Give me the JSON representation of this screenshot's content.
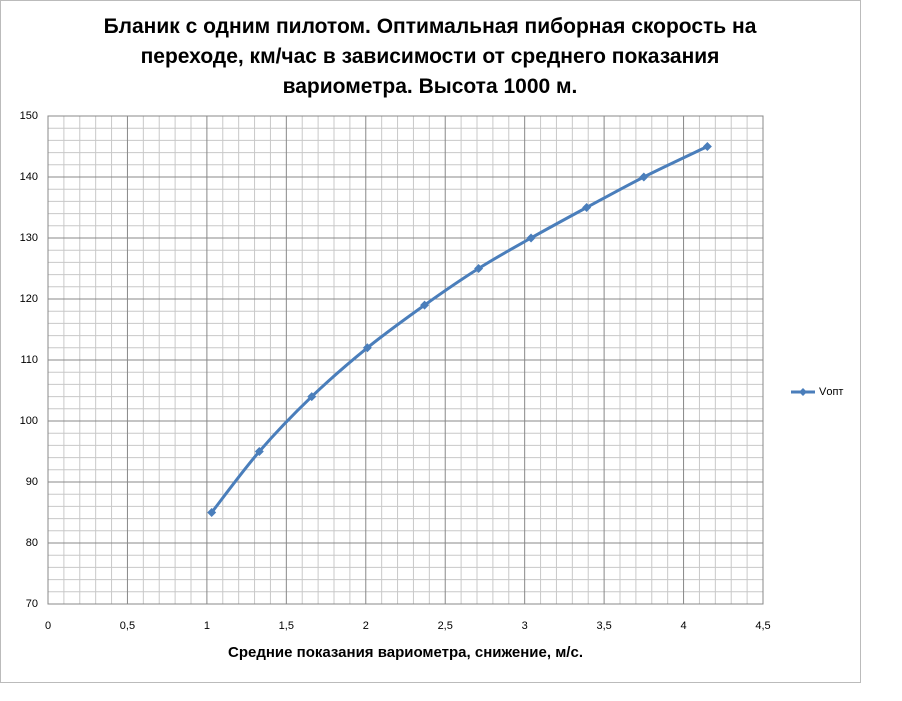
{
  "chart_data": {
    "type": "line",
    "title": "Бланик с одним пилотом. Оптимальная пиборная скорость на переходе, км/час в зависимости от среднего показания вариометра. Высота 1000 м.",
    "x_label": "Средние показания вариометра, снижение, м/с.",
    "x": [
      1.03,
      1.33,
      1.66,
      2.01,
      2.37,
      2.71,
      3.04,
      3.39,
      3.75,
      4.15
    ],
    "series": [
      {
        "name": "Vопт",
        "color": "#4a7ebb",
        "values": [
          85,
          95,
          104,
          112,
          119,
          125,
          130,
          135,
          140,
          145
        ]
      }
    ],
    "xlim": [
      0,
      4.5
    ],
    "xticks": [
      0,
      {
        "value": 0.5,
        "label": "0,5"
      },
      1,
      {
        "value": 1.5,
        "label": "1,5"
      },
      2,
      {
        "value": 2.5,
        "label": "2,5"
      },
      3,
      {
        "value": 3.5,
        "label": "3,5"
      },
      4,
      {
        "value": 4.5,
        "label": "4,5"
      }
    ],
    "ylim": [
      70,
      150
    ],
    "yticks": [
      70,
      80,
      90,
      100,
      110,
      120,
      130,
      140,
      150
    ],
    "grid": true,
    "minor_grid": true,
    "smooth": true,
    "legend": "right"
  }
}
